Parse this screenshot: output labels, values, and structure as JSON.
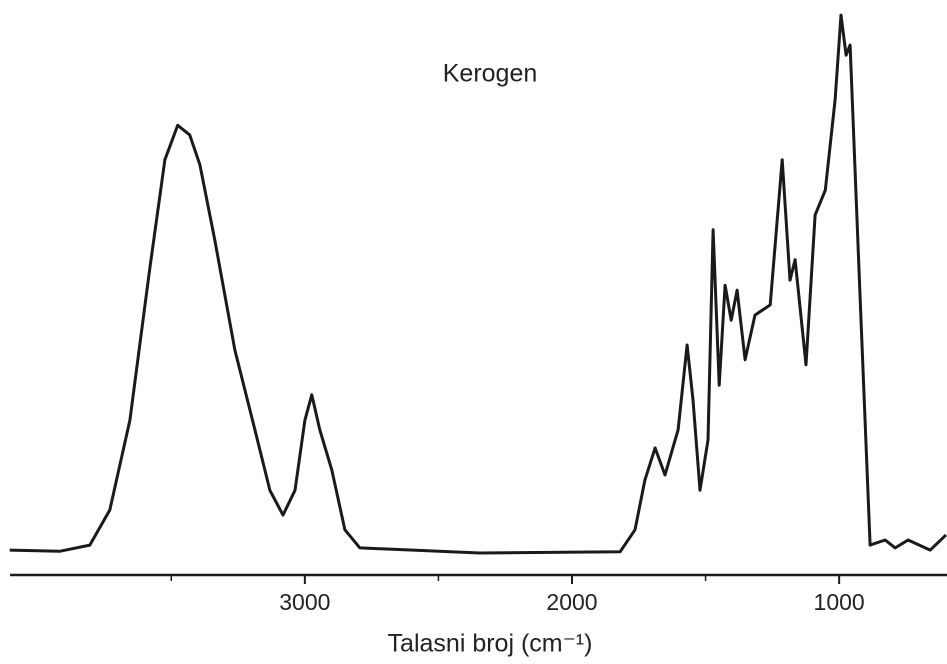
{
  "chart_data": {
    "type": "line",
    "title": "Kerogen",
    "xlabel": "Talasni broj (cm⁻¹)",
    "xlim": [
      4100,
      600
    ],
    "xticks": [
      3000,
      2000,
      1000
    ],
    "xminorticks": [
      3500,
      2500,
      1500
    ],
    "ylim": [
      0,
      100
    ],
    "color": "#1a1a1a",
    "series": [
      {
        "name": "Kerogen",
        "color": "#1a1a1a",
        "x": [
          4105,
          3918,
          3805,
          3730,
          3655,
          3581,
          3524,
          3476,
          3431,
          3393,
          3337,
          3262,
          3187,
          3131,
          3082,
          3037,
          3000,
          2974,
          2944,
          2899,
          2850,
          2794,
          2345,
          1820,
          1764,
          1727,
          1689,
          1652,
          1603,
          1569,
          1547,
          1521,
          1491,
          1472,
          1449,
          1427,
          1404,
          1382,
          1352,
          1315,
          1258,
          1213,
          1184,
          1165,
          1124,
          1090,
          1052,
          1015,
          993,
          974,
          959,
          921,
          884,
          828,
          790,
          742,
          659,
          600
        ],
        "values": [
          4.4,
          4.2,
          5.3,
          11.5,
          27.4,
          54,
          73.5,
          79.6,
          77.9,
          72.6,
          59.3,
          39.8,
          25.7,
          15,
          10.6,
          15,
          27.4,
          31.9,
          25.7,
          18.6,
          8,
          4.8,
          3.9,
          4.1,
          8,
          16.8,
          22.5,
          17.7,
          25.7,
          40.7,
          31,
          15,
          23.9,
          61.1,
          33.6,
          51.3,
          45.1,
          50.4,
          38.1,
          46,
          47.8,
          73.5,
          52.2,
          55.8,
          37.2,
          63.7,
          68.1,
          84.1,
          99.1,
          92,
          93.8,
          48.7,
          5.3,
          6.2,
          4.8,
          6.2,
          4.4,
          7.1
        ]
      }
    ]
  }
}
